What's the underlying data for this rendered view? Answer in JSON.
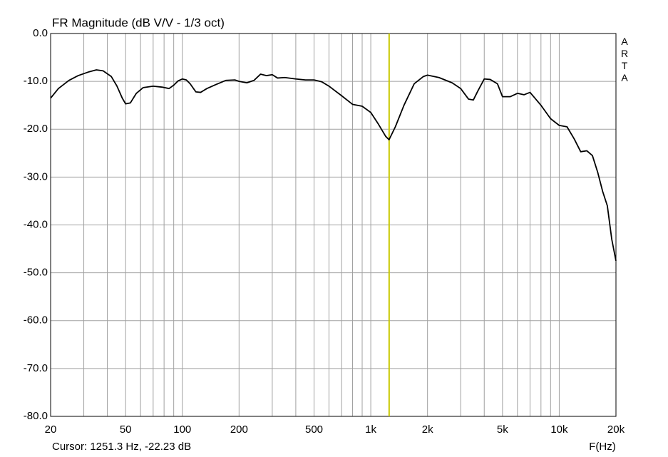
{
  "chart_data": {
    "type": "line",
    "title": "FR Magnitude (dB V/V - 1/3 oct)",
    "x_label": "F(Hz)",
    "watermark": "ARTA",
    "log_x": true,
    "grid": true,
    "xlim": [
      20,
      20000
    ],
    "ylim": [
      -80,
      0
    ],
    "xticks": [
      20,
      50,
      100,
      200,
      500,
      {
        "value": 1000,
        "label": "1k"
      },
      {
        "value": 2000,
        "label": "2k"
      },
      {
        "value": 5000,
        "label": "5k"
      },
      {
        "value": 10000,
        "label": "10k"
      },
      {
        "value": 20000,
        "label": "20k"
      }
    ],
    "x_minor_grid": [
      30,
      40,
      60,
      70,
      80,
      90,
      300,
      400,
      600,
      700,
      800,
      900,
      3000,
      4000,
      6000,
      7000,
      8000,
      9000
    ],
    "yticks": [
      {
        "value": 0,
        "label": "0.0"
      },
      {
        "value": -10,
        "label": "-10.0"
      },
      {
        "value": -20,
        "label": "-20.0"
      },
      {
        "value": -30,
        "label": "-30.0"
      },
      {
        "value": -40,
        "label": "-40.0"
      },
      {
        "value": -50,
        "label": "-50.0"
      },
      {
        "value": -60,
        "label": "-60.0"
      },
      {
        "value": -70,
        "label": "-70.0"
      },
      {
        "value": -80,
        "label": "-80.0"
      }
    ],
    "cursor": {
      "x": 1251.3,
      "color": "#c8c800",
      "label": "Cursor: 1251.3 Hz, -22.23 dB"
    },
    "x": [
      20,
      22,
      25,
      28,
      32,
      35,
      38,
      42,
      45,
      48,
      50,
      53,
      57,
      62,
      70,
      78,
      85,
      90,
      95,
      100,
      105,
      110,
      118,
      125,
      135,
      150,
      170,
      190,
      200,
      220,
      240,
      260,
      280,
      300,
      320,
      350,
      400,
      450,
      500,
      550,
      600,
      700,
      800,
      900,
      1000,
      1100,
      1200,
      1250,
      1350,
      1500,
      1700,
      1900,
      2000,
      2300,
      2700,
      3000,
      3300,
      3500,
      3700,
      4000,
      4300,
      4700,
      5000,
      5500,
      6000,
      6500,
      7000,
      8000,
      9000,
      10000,
      11000,
      12000,
      13000,
      14000,
      15000,
      16000,
      17000,
      18000,
      19000,
      20000
    ],
    "series": [
      {
        "color": "#000000",
        "values": [
          -13.5,
          -11.5,
          -9.8,
          -8.8,
          -8.0,
          -7.6,
          -7.8,
          -9.0,
          -11,
          -13.5,
          -14.7,
          -14.5,
          -12.5,
          -11.3,
          -11.0,
          -11.2,
          -11.5,
          -10.8,
          -9.9,
          -9.5,
          -9.7,
          -10.5,
          -12.2,
          -12.3,
          -11.5,
          -10.7,
          -9.8,
          -9.7,
          -10,
          -10.3,
          -9.8,
          -8.5,
          -8.8,
          -8.6,
          -9.3,
          -9.2,
          -9.5,
          -9.7,
          -9.7,
          -10.1,
          -11,
          -13,
          -14.8,
          -15.2,
          -16.5,
          -19,
          -21.5,
          -22.2,
          -19.5,
          -15,
          -10.5,
          -9,
          -8.7,
          -9.2,
          -10.3,
          -11.5,
          -13.7,
          -13.9,
          -12,
          -9.5,
          -9.6,
          -10.5,
          -13.2,
          -13.2,
          -12.5,
          -12.8,
          -12.3,
          -15,
          -17.8,
          -19.2,
          -19.5,
          -22,
          -24.7,
          -24.5,
          -25.5,
          -29,
          -33,
          -36,
          -43,
          -47.5
        ]
      }
    ]
  }
}
